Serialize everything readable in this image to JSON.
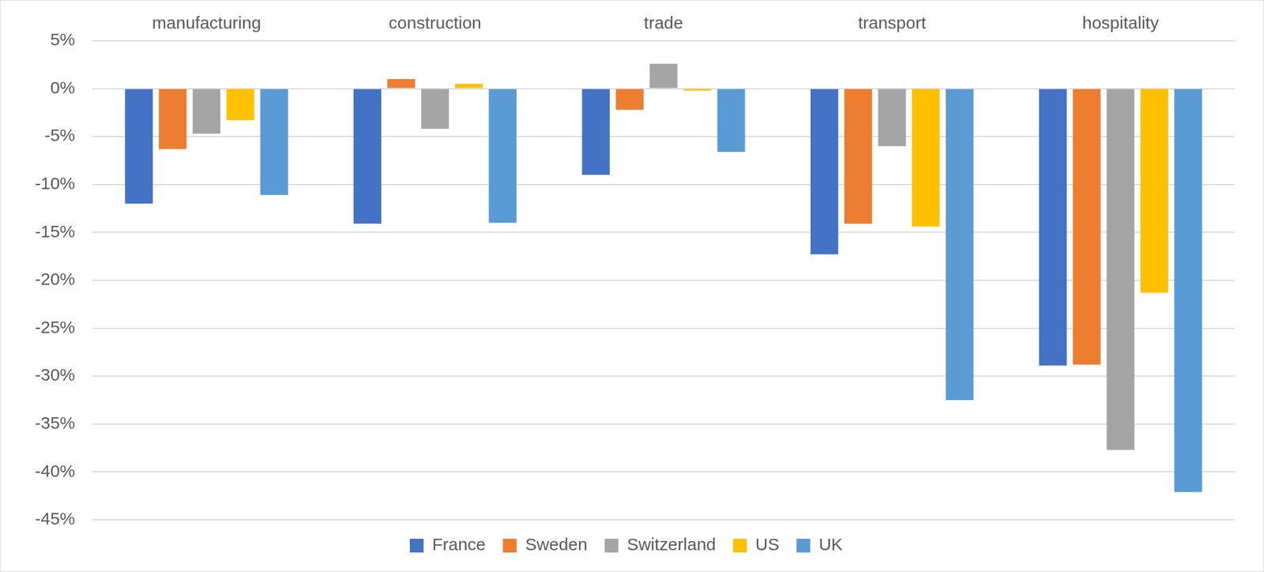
{
  "chart_data": {
    "type": "bar",
    "categories": [
      "manufacturing",
      "construction",
      "trade",
      "transport",
      "hospitality"
    ],
    "series": [
      {
        "name": "France",
        "color": "#4472c4",
        "values": [
          -12.0,
          -14.1,
          -9.0,
          -17.3,
          -28.9
        ]
      },
      {
        "name": "Sweden",
        "color": "#ed7d31",
        "values": [
          -6.3,
          1.0,
          -2.2,
          -14.1,
          -28.8
        ]
      },
      {
        "name": "Switzerland",
        "color": "#a5a5a5",
        "values": [
          -4.7,
          -4.2,
          2.6,
          -6.0,
          -37.7
        ]
      },
      {
        "name": "US",
        "color": "#ffc000",
        "values": [
          -3.3,
          0.5,
          -0.2,
          -14.4,
          -21.3
        ]
      },
      {
        "name": "UK",
        "color": "#5b9bd5",
        "values": [
          -11.1,
          -14.0,
          -6.6,
          -32.5,
          -42.1
        ]
      }
    ],
    "ylim": [
      -45,
      5
    ],
    "yticks": [
      {
        "value": 5,
        "label": "5%"
      },
      {
        "value": 0,
        "label": "0%"
      },
      {
        "value": -5,
        "label": "-5%"
      },
      {
        "value": -10,
        "label": "-10%"
      },
      {
        "value": -15,
        "label": "-15%"
      },
      {
        "value": -20,
        "label": "-20%"
      },
      {
        "value": -25,
        "label": "-25%"
      },
      {
        "value": -30,
        "label": "-30%"
      },
      {
        "value": -35,
        "label": "-35%"
      },
      {
        "value": -40,
        "label": "-40%"
      },
      {
        "value": -45,
        "label": "-45%"
      }
    ],
    "grid": true,
    "legend": "bottom"
  }
}
